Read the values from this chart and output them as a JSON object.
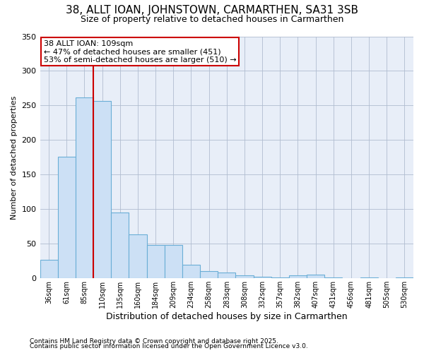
{
  "title": "38, ALLT IOAN, JOHNSTOWN, CARMARTHEN, SA31 3SB",
  "subtitle": "Size of property relative to detached houses in Carmarthen",
  "xlabel": "Distribution of detached houses by size in Carmarthen",
  "ylabel": "Number of detached properties",
  "bar_color": "#cce0f5",
  "bar_edge_color": "#6aaed6",
  "background_color": "#e8eef8",
  "grid_color": "#b0bcd0",
  "vline_color": "#cc0000",
  "categories": [
    "36sqm",
    "61sqm",
    "85sqm",
    "110sqm",
    "135sqm",
    "160sqm",
    "184sqm",
    "209sqm",
    "234sqm",
    "258sqm",
    "283sqm",
    "308sqm",
    "332sqm",
    "357sqm",
    "382sqm",
    "407sqm",
    "431sqm",
    "456sqm",
    "481sqm",
    "505sqm",
    "530sqm"
  ],
  "values": [
    27,
    176,
    262,
    257,
    95,
    64,
    48,
    48,
    20,
    11,
    8,
    4,
    2,
    1,
    4,
    5,
    1,
    0,
    1,
    0,
    1
  ],
  "vline_bin_index": 3,
  "annotation_title": "38 ALLT IOAN: 109sqm",
  "annotation_line1": "← 47% of detached houses are smaller (451)",
  "annotation_line2": "53% of semi-detached houses are larger (510) →",
  "annotation_box_color": "#ffffff",
  "annotation_box_edge": "#cc0000",
  "ylim": [
    0,
    350
  ],
  "yticks": [
    0,
    50,
    100,
    150,
    200,
    250,
    300,
    350
  ],
  "footnote1": "Contains HM Land Registry data © Crown copyright and database right 2025.",
  "footnote2": "Contains public sector information licensed under the Open Government Licence v3.0."
}
